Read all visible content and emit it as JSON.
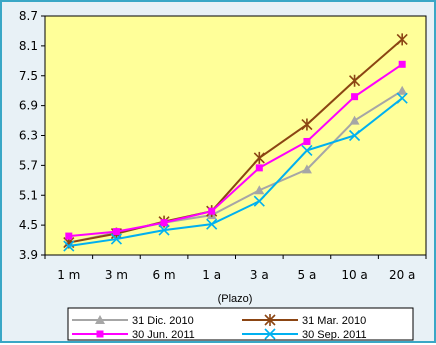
{
  "chart_data": {
    "type": "line",
    "x": [
      "1 m",
      "3 m",
      "6 m",
      "1 a",
      "3 a",
      "5 a",
      "10 a",
      "20 a"
    ],
    "xlabel": "(Plazo)",
    "ylabel": "",
    "title": "",
    "ylim": [
      3.9,
      8.7
    ],
    "yticks": [
      3.9,
      4.5,
      5.1,
      5.7,
      6.3,
      6.9,
      7.5,
      8.1,
      8.7
    ],
    "ytick_labels": [
      "3.9",
      "4.5",
      "5.1",
      "5.7",
      "6.3",
      "6.9",
      "7.5",
      "8.1",
      "8.7"
    ],
    "grid": false,
    "legend": "bottom",
    "background_color": "#ffff99",
    "series": [
      {
        "name": "31 Dic. 2010",
        "color": "#a6a6a6",
        "marker": "triangle",
        "values": [
          4.15,
          4.35,
          4.55,
          4.7,
          5.2,
          5.62,
          6.6,
          7.2
        ]
      },
      {
        "name": "31 Mar. 2010",
        "color": "#8b4513",
        "marker": "star",
        "values": [
          4.15,
          4.33,
          4.57,
          4.78,
          5.85,
          6.52,
          7.4,
          8.23
        ]
      },
      {
        "name": "30 Jun. 2011",
        "color": "#ff00ff",
        "marker": "square",
        "values": [
          4.28,
          4.37,
          4.55,
          4.78,
          5.65,
          6.18,
          7.08,
          7.73
        ]
      },
      {
        "name": "30 Sep. 2011",
        "color": "#00b0f0",
        "marker": "x",
        "values": [
          4.08,
          4.22,
          4.4,
          4.52,
          4.98,
          6.0,
          6.3,
          7.05
        ]
      }
    ]
  }
}
